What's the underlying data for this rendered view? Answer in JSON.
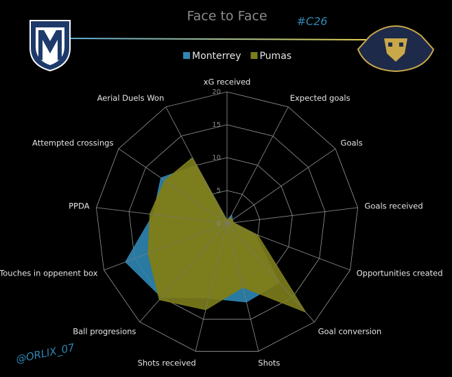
{
  "chart_data": {
    "type": "radar",
    "title": "Face to Face",
    "tag": "#C26",
    "credit": "@ORLIX_07",
    "categories": [
      "xG received",
      "Expected goals",
      "Goals",
      "Goals received",
      "Opportunities created",
      "Goal conversion",
      "Shots",
      "Shots received",
      "Ball progresions",
      "Touches in oppenent box",
      "PPDA",
      "Attempted crossings",
      "Aerial Duels Won"
    ],
    "series": [
      {
        "name": "Monterrey",
        "color": "#2f86b3",
        "values": [
          0.5,
          1.5,
          1,
          1,
          4.5,
          12,
          12.3,
          11.7,
          15,
          16.5,
          11.3,
          12.2,
          10
        ]
      },
      {
        "name": "Pumas",
        "color": "#7d7d1c",
        "values": [
          0.5,
          1,
          1,
          1,
          5,
          18,
          10,
          13.5,
          15.5,
          12.8,
          11.8,
          11.5,
          11.3
        ]
      }
    ],
    "ylim": [
      0,
      20
    ],
    "yticks": [
      0,
      5,
      10,
      15,
      20
    ],
    "grid": true,
    "overlap_color": "#a9c98d"
  }
}
